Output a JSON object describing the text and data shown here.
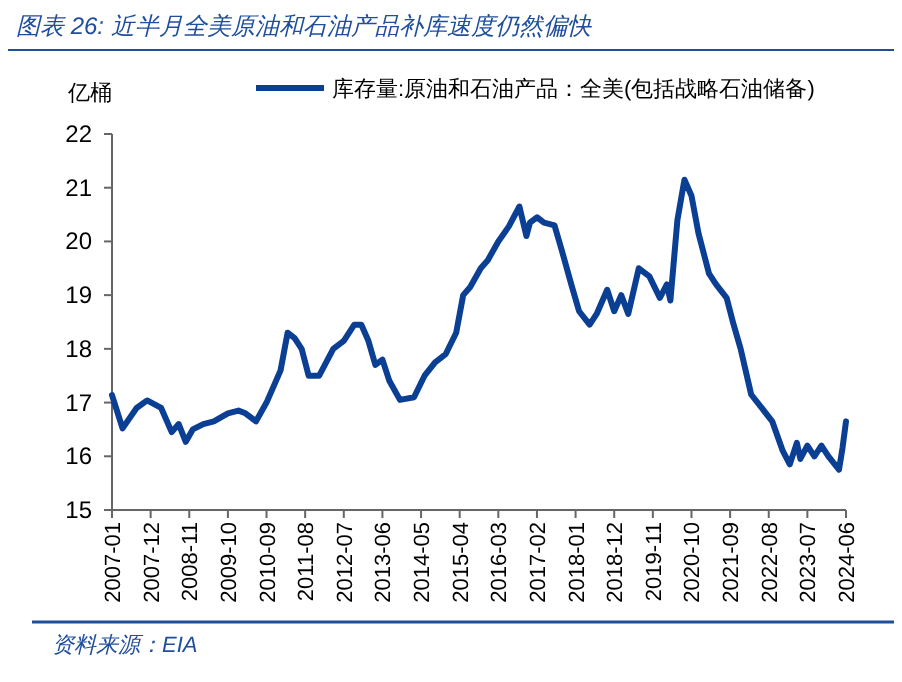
{
  "chart_data": {
    "type": "line",
    "title": "图表 26: 近半月全美原油和石油产品补库速度仍然偏快",
    "ylabel": "亿桶",
    "annotations": [
      "资料来源：EIA"
    ],
    "legend": "top",
    "grid": false,
    "xlim": [
      "2007-01",
      "2024-06"
    ],
    "xticks": [
      "2007-01",
      "2007-12",
      "2008-11",
      "2009-10",
      "2010-09",
      "2011-08",
      "2012-07",
      "2013-06",
      "2014-05",
      "2015-04",
      "2016-03",
      "2017-02",
      "2018-01",
      "2018-12",
      "2019-11",
      "2020-10",
      "2021-09",
      "2022-08",
      "2023-07",
      "2024-06"
    ],
    "ylim": [
      15,
      22
    ],
    "yticks": [
      15,
      16,
      17,
      18,
      19,
      20,
      21,
      22
    ],
    "x": [
      "2007-01",
      "2007-04",
      "2007-08",
      "2007-11",
      "2008-03",
      "2008-06",
      "2008-08",
      "2008-10",
      "2008-12",
      "2009-03",
      "2009-06",
      "2009-10",
      "2010-01",
      "2010-03",
      "2010-06",
      "2010-09",
      "2011-01",
      "2011-03",
      "2011-05",
      "2011-07",
      "2011-09",
      "2011-12",
      "2012-04",
      "2012-07",
      "2012-10",
      "2012-12",
      "2013-02",
      "2013-04",
      "2013-06",
      "2013-08",
      "2013-11",
      "2014-03",
      "2014-06",
      "2014-09",
      "2014-12",
      "2015-03",
      "2015-05",
      "2015-07",
      "2015-10",
      "2015-12",
      "2016-03",
      "2016-06",
      "2016-09",
      "2016-11",
      "2016-12",
      "2017-02",
      "2017-04",
      "2017-07",
      "2017-09",
      "2017-12",
      "2018-02",
      "2018-05",
      "2018-07",
      "2018-10",
      "2018-12",
      "2019-02",
      "2019-04",
      "2019-07",
      "2019-10",
      "2020-01",
      "2020-03",
      "2020-04",
      "2020-06",
      "2020-08",
      "2020-10",
      "2020-12",
      "2021-03",
      "2021-05",
      "2021-08",
      "2021-10",
      "2021-12",
      "2022-03",
      "2022-06",
      "2022-09",
      "2022-12",
      "2023-02",
      "2023-04",
      "2023-05",
      "2023-07",
      "2023-09",
      "2023-11",
      "2024-01",
      "2024-04",
      "2024-05",
      "2024-06"
    ],
    "series": [
      {
        "name": "库存量:原油和石油产品：全美(包括战略石油储备)",
        "color": "#0b3f94",
        "line_style": "solid",
        "marker": "none",
        "values": [
          17.14,
          16.52,
          16.9,
          17.04,
          16.9,
          16.45,
          16.6,
          16.27,
          16.5,
          16.6,
          16.65,
          16.8,
          16.85,
          16.8,
          16.65,
          17.0,
          17.6,
          18.3,
          18.2,
          18.0,
          17.5,
          17.5,
          18.0,
          18.15,
          18.45,
          18.45,
          18.15,
          17.7,
          17.8,
          17.4,
          17.05,
          17.1,
          17.5,
          17.75,
          17.9,
          18.3,
          19.0,
          19.15,
          19.5,
          19.65,
          20.0,
          20.28,
          20.65,
          20.1,
          20.35,
          20.45,
          20.35,
          20.3,
          19.85,
          19.15,
          18.7,
          18.45,
          18.65,
          19.1,
          18.7,
          19.0,
          18.65,
          19.5,
          19.35,
          18.95,
          19.2,
          18.9,
          20.4,
          21.15,
          20.85,
          20.15,
          19.4,
          19.2,
          18.95,
          18.45,
          18.0,
          17.15,
          16.9,
          16.65,
          16.1,
          15.85,
          16.25,
          15.95,
          16.2,
          16.0,
          16.2,
          16.0,
          15.75,
          16.15,
          16.65
        ]
      }
    ]
  }
}
